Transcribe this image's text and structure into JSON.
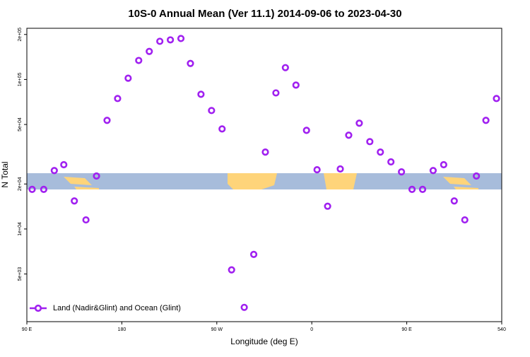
{
  "chart_data": {
    "type": "scatter",
    "title": "10S-0 Annual Mean (Ver 11.1)   2014-09-06 to 2023-04-30",
    "x_label": "Longitude (deg E)",
    "y_label": "N Total",
    "log_y": true,
    "legend": "bottom-left",
    "xlim": [
      90,
      540
    ],
    "ylim": [
      2400,
      220000
    ],
    "xticks": [
      {
        "value": 90,
        "label": "90 E"
      },
      180,
      {
        "value": 270,
        "label": "90 W"
      },
      {
        "value": 360,
        "label": "0"
      },
      {
        "value": 450,
        "label": "90 E"
      },
      540
    ],
    "yticks": [
      {
        "value": 5000,
        "label": "5e+03"
      },
      {
        "value": 10000,
        "label": "1e+04"
      },
      {
        "value": 20000,
        "label": "2e+04"
      },
      {
        "value": 50000,
        "label": "5e+04"
      },
      {
        "value": 100000,
        "label": "1e+05"
      },
      {
        "value": 200000,
        "label": "2e+05"
      }
    ],
    "series": [
      {
        "name": "Land (Nadir&Glint) and Ocean (Glint)",
        "color": "#a020f0",
        "x": [
          95,
          106,
          116,
          125,
          135,
          146,
          156,
          166,
          176,
          186,
          196,
          206,
          216,
          226,
          236,
          245,
          255,
          265,
          275,
          284,
          296,
          305,
          316,
          326,
          335,
          345,
          355,
          365,
          375,
          387,
          395,
          405,
          415,
          425,
          435,
          445,
          455,
          465,
          475,
          485,
          495,
          505,
          516,
          525,
          535
        ],
        "values": [
          18400,
          18400,
          24600,
          26900,
          15400,
          11500,
          22600,
          53300,
          74600,
          102000,
          134000,
          154000,
          180000,
          184000,
          188000,
          128000,
          79600,
          62000,
          46700,
          5330,
          2990,
          6760,
          32700,
          81300,
          120000,
          91700,
          45700,
          24900,
          14200,
          25200,
          42400,
          51000,
          38400,
          32700,
          28100,
          24100,
          18400,
          18400,
          24600,
          26900,
          15400,
          11500,
          22600,
          53300,
          74600
        ]
      }
    ]
  }
}
